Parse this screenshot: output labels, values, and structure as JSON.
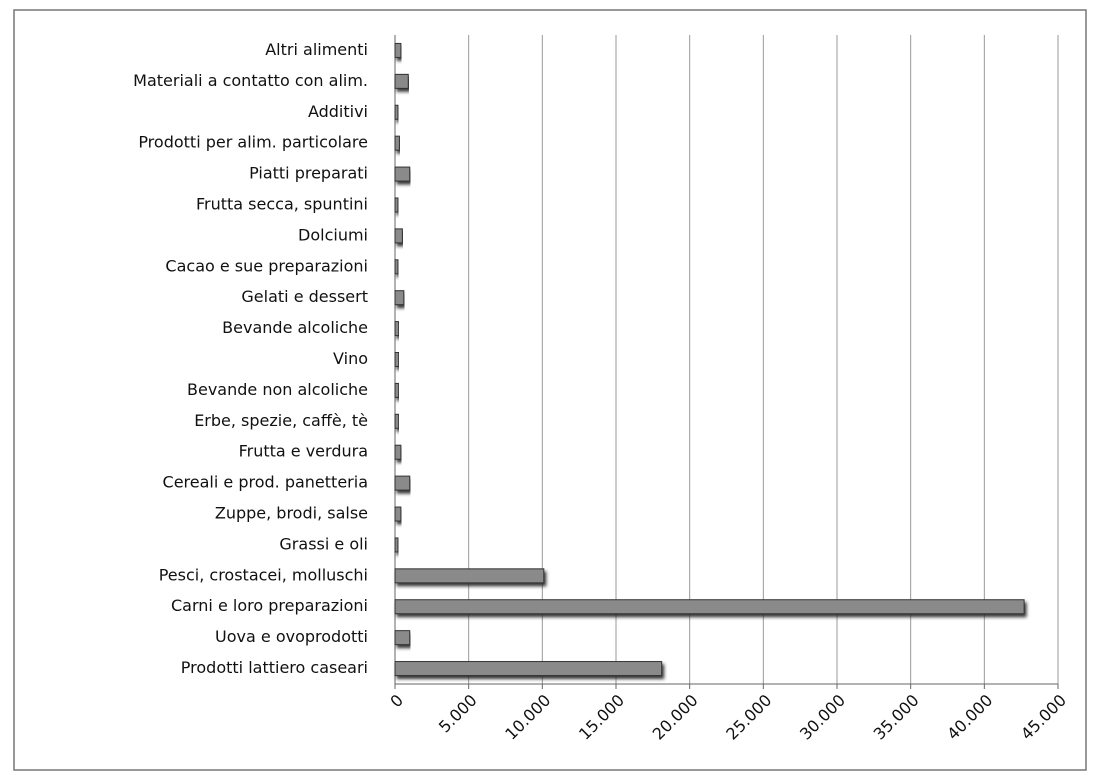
{
  "chart_data": {
    "type": "barh",
    "categories": [
      "Altri alimenti",
      "Materiali a contatto con alim.",
      "Additivi",
      "Prodotti per alim. particolare",
      "Piatti preparati",
      "Frutta secca, spuntini",
      "Dolciumi",
      "Cacao e sue preparazioni",
      "Gelati e dessert",
      "Bevande alcoliche",
      "Vino",
      "Bevande non alcoliche",
      "Erbe, spezie, caffè, tè",
      "Frutta e verdura",
      "Cereali e prod. panetteria",
      "Zuppe, brodi, salse",
      "Grassi e oli",
      "Pesci, crostacei, molluschi",
      "Carni e loro preparazioni",
      "Uova e ovoprodotti",
      "Prodotti lattiero caseari"
    ],
    "values": [
      400,
      900,
      200,
      300,
      1000,
      200,
      500,
      200,
      600,
      250,
      250,
      250,
      250,
      400,
      1000,
      400,
      200,
      10100,
      42700,
      1000,
      18100
    ],
    "color": "#8a8a8a",
    "xlim": [
      0,
      45000
    ],
    "xticks": [
      0,
      {
        "value": 5000,
        "label": "5.000"
      },
      {
        "value": 10000,
        "label": "10.000"
      },
      {
        "value": 15000,
        "label": "15.000"
      },
      {
        "value": 20000,
        "label": "20.000"
      },
      {
        "value": 25000,
        "label": "25.000"
      },
      {
        "value": 30000,
        "label": "30.000"
      },
      {
        "value": 35000,
        "label": "35.000"
      },
      {
        "value": 40000,
        "label": "40.000"
      },
      {
        "value": 45000,
        "label": "45.000"
      }
    ],
    "grid": true
  }
}
